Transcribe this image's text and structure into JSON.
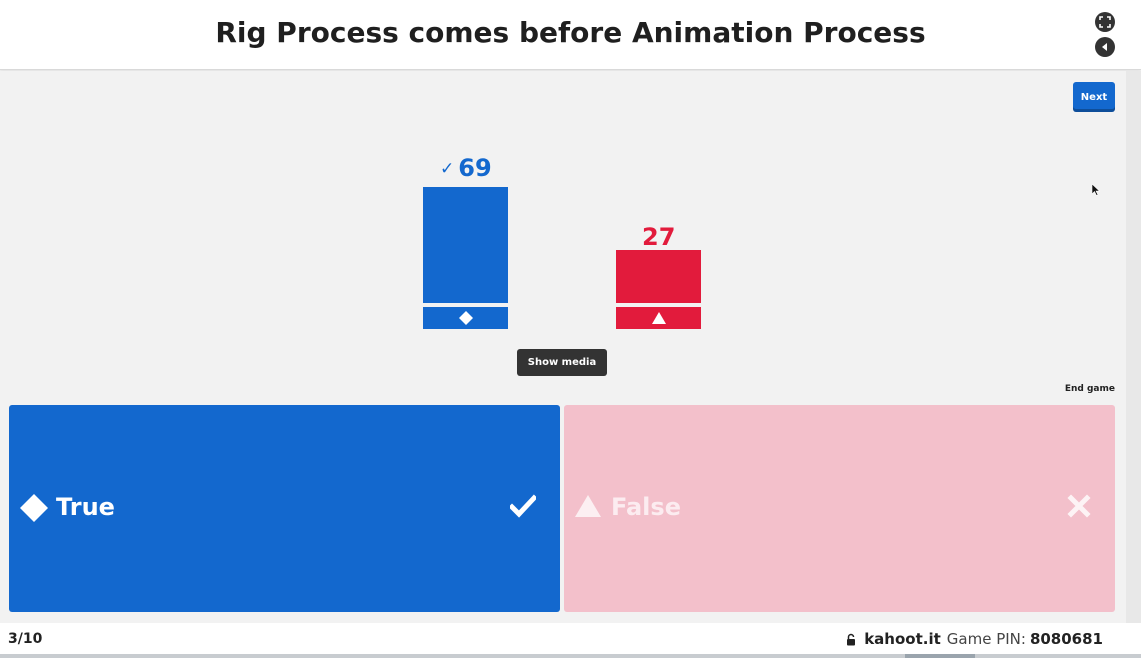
{
  "header": {
    "title": "Rig Process comes before Animation Process",
    "fullscreen_icon": "fullscreen-icon",
    "sound_icon": "sound-icon"
  },
  "controls": {
    "next_label": "Next",
    "show_media_label": "Show media",
    "end_game_label": "End game"
  },
  "results": [
    {
      "shape": "diamond",
      "count": "69",
      "correct": true,
      "color": "#1368ce"
    },
    {
      "shape": "triangle",
      "count": "27",
      "correct": false,
      "color": "#e21b3c"
    }
  ],
  "answers": [
    {
      "shape": "diamond",
      "label": "True",
      "correct": true,
      "color": "#1368ce"
    },
    {
      "shape": "triangle",
      "label": "False",
      "correct": false,
      "color": "#f3c0cb"
    }
  ],
  "footer": {
    "progress": "3/10",
    "domain": "kahoot.it",
    "pin_label": "Game PIN:",
    "pin": "8080681"
  }
}
